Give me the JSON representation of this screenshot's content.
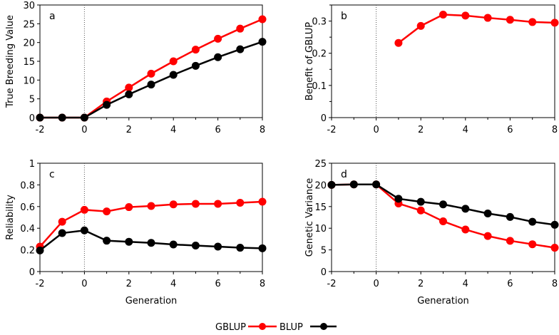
{
  "chart_data": [
    {
      "type": "line",
      "panel_label": "a",
      "xlabel": "",
      "ylabel": "True Breeding Value",
      "x": [
        -2,
        -1,
        0,
        1,
        2,
        3,
        4,
        5,
        6,
        7,
        8
      ],
      "xlim": [
        -2,
        8
      ],
      "xticks": [
        -2,
        0,
        2,
        4,
        6,
        8
      ],
      "ylim": [
        0,
        30
      ],
      "yticks": [
        0,
        5,
        10,
        15,
        20,
        25,
        30
      ],
      "ytick_labels": [
        "0",
        "5",
        "10",
        "15",
        "20",
        "25",
        "30"
      ],
      "series": [
        {
          "name": "GBLUP",
          "color": "#ff0000",
          "values": [
            0,
            0,
            0,
            4.3,
            8.0,
            11.7,
            15.0,
            18.1,
            21.0,
            23.7,
            26.2
          ]
        },
        {
          "name": "BLUP",
          "color": "#000000",
          "values": [
            0,
            0,
            0,
            3.4,
            6.2,
            8.8,
            11.4,
            13.8,
            16.1,
            18.2,
            20.2
          ]
        }
      ]
    },
    {
      "type": "line",
      "panel_label": "b",
      "xlabel": "",
      "ylabel": "Benefit of GBLUP",
      "x": [
        1,
        2,
        3,
        4,
        5,
        6,
        7,
        8
      ],
      "xlim": [
        -2,
        8
      ],
      "xticks": [
        -2,
        0,
        2,
        4,
        6,
        8
      ],
      "ylim": [
        0,
        0.35
      ],
      "yticks": [
        0,
        0.1,
        0.2,
        0.3
      ],
      "ytick_labels": [
        "0",
        "0.1",
        "0.2",
        "0.3"
      ],
      "minor_yticks": [
        0.05,
        0.15,
        0.25,
        0.35
      ],
      "series": [
        {
          "name": "GBLUP",
          "color": "#ff0000",
          "values": [
            0.232,
            0.285,
            0.32,
            0.317,
            0.31,
            0.304,
            0.297,
            0.295
          ]
        }
      ]
    },
    {
      "type": "line",
      "panel_label": "c",
      "xlabel": "Generation",
      "ylabel": "Reliability",
      "x": [
        -2,
        -1,
        0,
        1,
        2,
        3,
        4,
        5,
        6,
        7,
        8
      ],
      "xlim": [
        -2,
        8
      ],
      "xticks": [
        -2,
        0,
        2,
        4,
        6,
        8
      ],
      "ylim": [
        0,
        1
      ],
      "yticks": [
        0,
        0.2,
        0.4,
        0.6,
        0.8,
        1
      ],
      "ytick_labels": [
        "0",
        "0.2",
        "0.4",
        "0.6",
        "0.8",
        "1"
      ],
      "series": [
        {
          "name": "GBLUP",
          "color": "#ff0000",
          "values": [
            0.23,
            0.46,
            0.57,
            0.555,
            0.595,
            0.605,
            0.62,
            0.625,
            0.625,
            0.635,
            0.645
          ]
        },
        {
          "name": "BLUP",
          "color": "#000000",
          "values": [
            0.195,
            0.355,
            0.38,
            0.285,
            0.275,
            0.265,
            0.25,
            0.24,
            0.23,
            0.22,
            0.215
          ]
        }
      ]
    },
    {
      "type": "line",
      "panel_label": "d",
      "xlabel": "Generation",
      "ylabel": "Genetic Variance",
      "x": [
        -2,
        -1,
        0,
        1,
        2,
        3,
        4,
        5,
        6,
        7,
        8
      ],
      "xlim": [
        -2,
        8
      ],
      "xticks": [
        -2,
        0,
        2,
        4,
        6,
        8
      ],
      "ylim": [
        0,
        25
      ],
      "yticks": [
        0,
        5,
        10,
        15,
        20,
        25
      ],
      "ytick_labels": [
        "0",
        "5",
        "10",
        "15",
        "20",
        "25"
      ],
      "series": [
        {
          "name": "GBLUP",
          "color": "#ff0000",
          "values": [
            20,
            20.1,
            20.1,
            15.7,
            14.1,
            11.6,
            9.7,
            8.2,
            7.1,
            6.3,
            5.5
          ]
        },
        {
          "name": "BLUP",
          "color": "#000000",
          "values": [
            20,
            20.1,
            20.1,
            16.8,
            16.1,
            15.5,
            14.5,
            13.4,
            12.6,
            11.5,
            10.8
          ]
        }
      ]
    }
  ],
  "legend": {
    "placement": "bottom-center",
    "items": [
      {
        "label": "GBLUP",
        "color": "#ff0000"
      },
      {
        "label": "BLUP",
        "color": "#000000"
      }
    ]
  }
}
